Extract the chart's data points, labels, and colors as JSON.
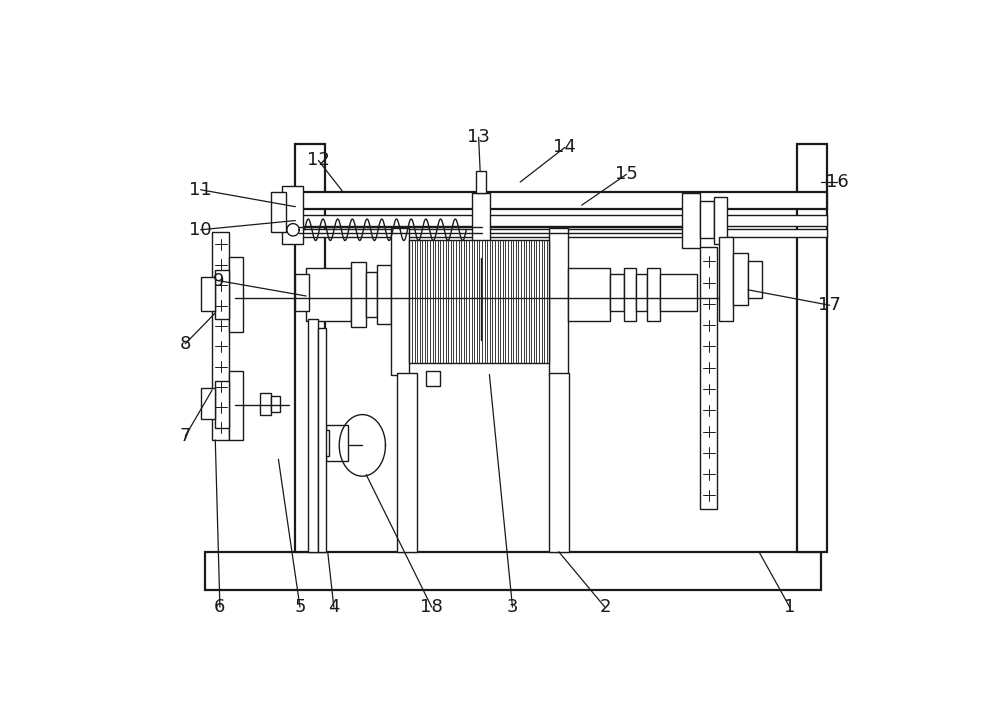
{
  "bg_color": "#ffffff",
  "line_color": "#1a1a1a",
  "fig_width": 10.0,
  "fig_height": 7.15,
  "lw": 1.0,
  "lw2": 1.6
}
